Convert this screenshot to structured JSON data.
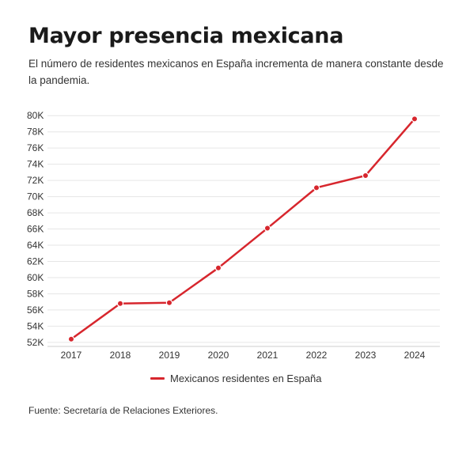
{
  "header": {
    "title": "Mayor presencia mexicana",
    "subtitle": "El número de residentes mexicanos en España incrementa de manera constante desde la pandemia."
  },
  "footer": {
    "source": "Fuente: Secretaría de Relaciones Exteriores."
  },
  "colors": {
    "series": "#d7262d",
    "grid": "#e6e6e6",
    "axis": "#cccccc"
  },
  "chart_data": {
    "type": "line",
    "x": [
      "2017",
      "2018",
      "2019",
      "2020",
      "2021",
      "2022",
      "2023",
      "2024"
    ],
    "series": [
      {
        "name": "Mexicanos residentes en España",
        "values": [
          52400,
          56800,
          56900,
          61200,
          66100,
          71100,
          72600,
          79600
        ]
      }
    ],
    "ylim": [
      51500,
      81000
    ],
    "yticks": [
      52000,
      54000,
      56000,
      58000,
      60000,
      62000,
      64000,
      66000,
      68000,
      70000,
      72000,
      74000,
      76000,
      78000,
      80000
    ],
    "ytick_labels": [
      "52K",
      "54K",
      "56K",
      "58K",
      "60K",
      "62K",
      "64K",
      "66K",
      "68K",
      "70K",
      "72K",
      "74K",
      "76K",
      "78K",
      "80K"
    ],
    "xlabel": "",
    "ylabel": "",
    "grid": true,
    "legend": "bottom-center"
  }
}
